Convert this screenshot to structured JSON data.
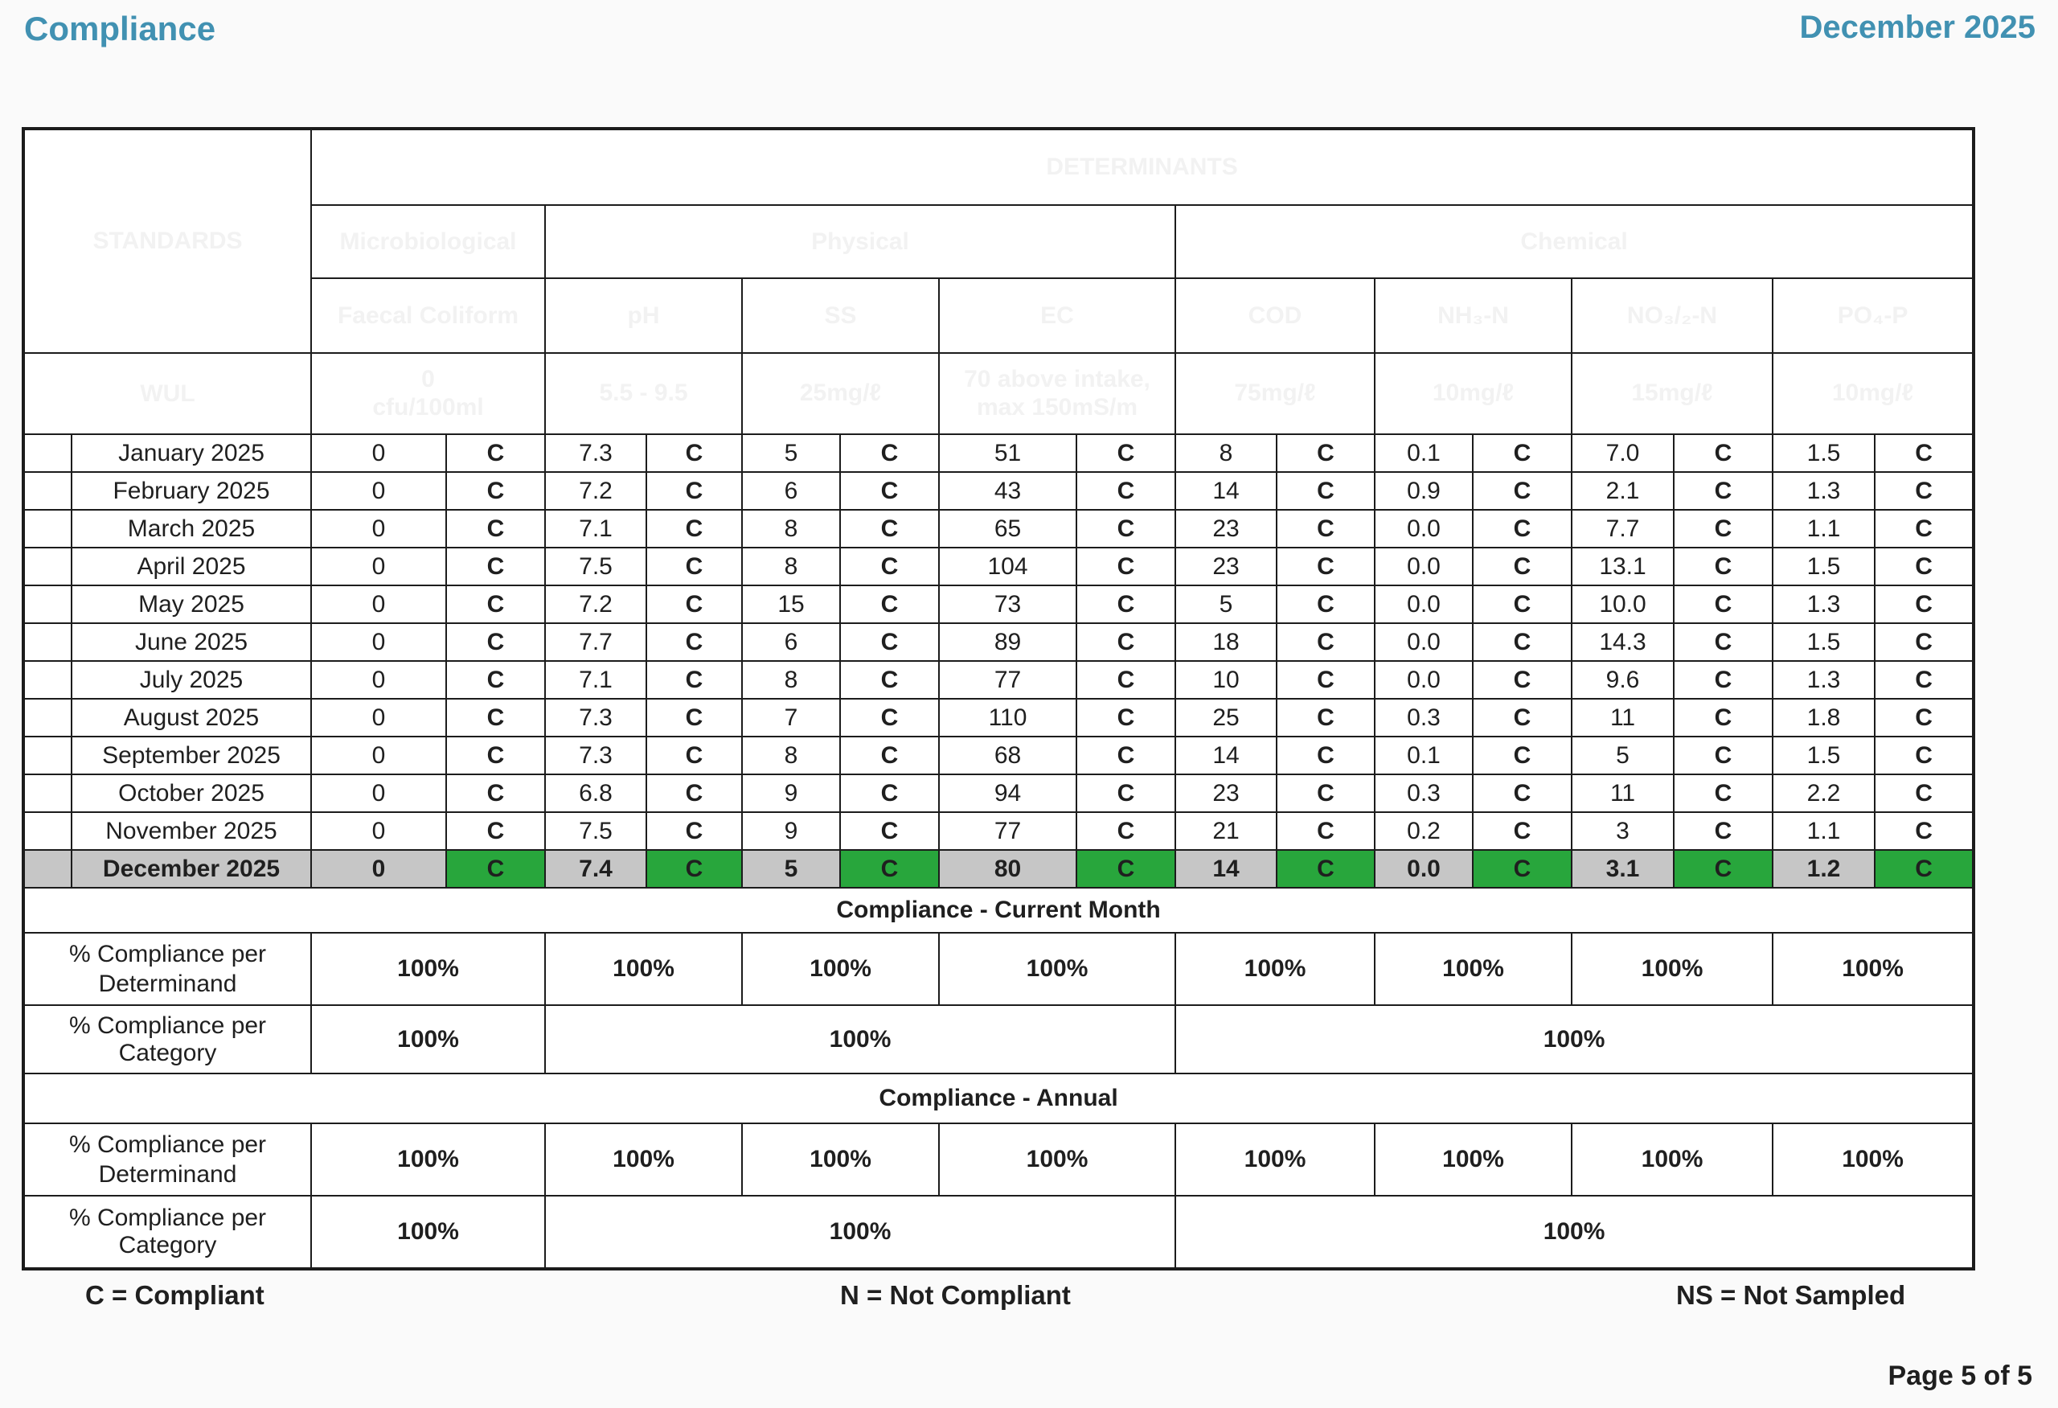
{
  "page": {
    "title": "Compliance",
    "date": "December 2025",
    "page_label": "Page 5 of 5"
  },
  "colors": {
    "header_teal": "#2F738A",
    "compliant_green": "#28A63C",
    "summary_green": "#56B666",
    "band_blue": "#DBEDF3",
    "determinand_peach": "#F6DCC8",
    "category_yellow": "#F6EE8F",
    "current_month_gray": "#C6C6C6",
    "title_teal": "#4191B2"
  },
  "table": {
    "standards_label": "STANDARDS",
    "determinants_label": "DETERMINANTS",
    "wul_label": "WUL",
    "categories": [
      {
        "label": "Microbiological",
        "determinant_count": 1
      },
      {
        "label": "Physical",
        "determinant_count": 3
      },
      {
        "label": "Chemical",
        "determinant_count": 4
      }
    ],
    "determinants": [
      {
        "name": "Faecal Coliform",
        "wul": "0\ncfu/100ml"
      },
      {
        "name": "pH",
        "wul": "5.5 - 9.5"
      },
      {
        "name": "SS",
        "wul": "25mg/ℓ"
      },
      {
        "name": "EC",
        "wul": "70 above intake, max 150mS/m"
      },
      {
        "name": "COD",
        "wul": "75mg/ℓ"
      },
      {
        "name": "NH₃-N",
        "wul": "10mg/ℓ"
      },
      {
        "name": "NO₃/₂-N",
        "wul": "15mg/ℓ"
      },
      {
        "name": "PO₄-P",
        "wul": "10mg/ℓ"
      }
    ],
    "months": [
      {
        "name": "January 2025",
        "values": [
          "0",
          "7.3",
          "5",
          "51",
          "8",
          "0.1",
          "7.0",
          "1.5"
        ],
        "statuses": [
          "C",
          "C",
          "C",
          "C",
          "C",
          "C",
          "C",
          "C"
        ],
        "highlight": false
      },
      {
        "name": "February 2025",
        "values": [
          "0",
          "7.2",
          "6",
          "43",
          "14",
          "0.9",
          "2.1",
          "1.3"
        ],
        "statuses": [
          "C",
          "C",
          "C",
          "C",
          "C",
          "C",
          "C",
          "C"
        ],
        "highlight": false
      },
      {
        "name": "March 2025",
        "values": [
          "0",
          "7.1",
          "8",
          "65",
          "23",
          "0.0",
          "7.7",
          "1.1"
        ],
        "statuses": [
          "C",
          "C",
          "C",
          "C",
          "C",
          "C",
          "C",
          "C"
        ],
        "highlight": false
      },
      {
        "name": "April 2025",
        "values": [
          "0",
          "7.5",
          "8",
          "104",
          "23",
          "0.0",
          "13.1",
          "1.5"
        ],
        "statuses": [
          "C",
          "C",
          "C",
          "C",
          "C",
          "C",
          "C",
          "C"
        ],
        "highlight": false
      },
      {
        "name": "May 2025",
        "values": [
          "0",
          "7.2",
          "15",
          "73",
          "5",
          "0.0",
          "10.0",
          "1.3"
        ],
        "statuses": [
          "C",
          "C",
          "C",
          "C",
          "C",
          "C",
          "C",
          "C"
        ],
        "highlight": false
      },
      {
        "name": "June 2025",
        "values": [
          "0",
          "7.7",
          "6",
          "89",
          "18",
          "0.0",
          "14.3",
          "1.5"
        ],
        "statuses": [
          "C",
          "C",
          "C",
          "C",
          "C",
          "C",
          "C",
          "C"
        ],
        "highlight": false
      },
      {
        "name": "July 2025",
        "values": [
          "0",
          "7.1",
          "8",
          "77",
          "10",
          "0.0",
          "9.6",
          "1.3"
        ],
        "statuses": [
          "C",
          "C",
          "C",
          "C",
          "C",
          "C",
          "C",
          "C"
        ],
        "highlight": false
      },
      {
        "name": "August 2025",
        "values": [
          "0",
          "7.3",
          "7",
          "110",
          "25",
          "0.3",
          "11",
          "1.8"
        ],
        "statuses": [
          "C",
          "C",
          "C",
          "C",
          "C",
          "C",
          "C",
          "C"
        ],
        "highlight": false
      },
      {
        "name": "September 2025",
        "values": [
          "0",
          "7.3",
          "8",
          "68",
          "14",
          "0.1",
          "5",
          "1.5"
        ],
        "statuses": [
          "C",
          "C",
          "C",
          "C",
          "C",
          "C",
          "C",
          "C"
        ],
        "highlight": false
      },
      {
        "name": "October 2025",
        "values": [
          "0",
          "6.8",
          "9",
          "94",
          "23",
          "0.3",
          "11",
          "2.2"
        ],
        "statuses": [
          "C",
          "C",
          "C",
          "C",
          "C",
          "C",
          "C",
          "C"
        ],
        "highlight": false
      },
      {
        "name": "November 2025",
        "values": [
          "0",
          "7.5",
          "9",
          "77",
          "21",
          "0.2",
          "3",
          "1.1"
        ],
        "statuses": [
          "C",
          "C",
          "C",
          "C",
          "C",
          "C",
          "C",
          "C"
        ],
        "highlight": false
      },
      {
        "name": "December 2025",
        "values": [
          "0",
          "7.4",
          "5",
          "80",
          "14",
          "0.0",
          "3.1",
          "1.2"
        ],
        "statuses": [
          "C",
          "C",
          "C",
          "C",
          "C",
          "C",
          "C",
          "C"
        ],
        "highlight": true
      }
    ],
    "sections": [
      {
        "band": "Compliance - Current Month",
        "determinand_label": "% Compliance per Determinand",
        "determinand_values": [
          "100%",
          "100%",
          "100%",
          "100%",
          "100%",
          "100%",
          "100%",
          "100%"
        ],
        "category_label": "% Compliance per Category",
        "category_values": [
          "100%",
          "100%",
          "100%"
        ]
      },
      {
        "band": "Compliance - Annual",
        "determinand_label": "% Compliance per Determinand",
        "determinand_values": [
          "100%",
          "100%",
          "100%",
          "100%",
          "100%",
          "100%",
          "100%",
          "100%"
        ],
        "category_label": "% Compliance per Category",
        "category_values": [
          "100%",
          "100%",
          "100%"
        ]
      }
    ],
    "legend": [
      "C = Compliant",
      "N = Not Compliant",
      "NS = Not Sampled"
    ]
  }
}
